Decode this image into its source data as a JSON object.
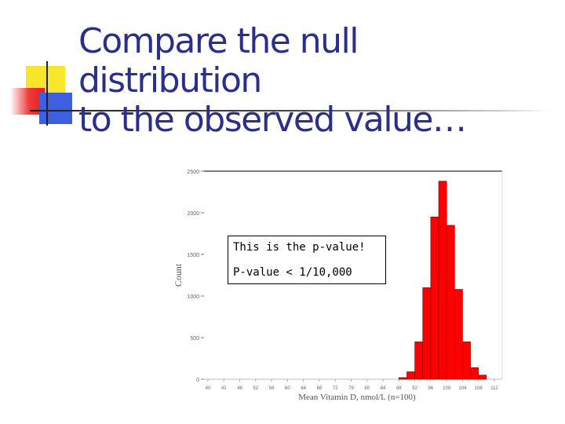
{
  "slide": {
    "title_line1": "Compare the null distribution",
    "title_line2": "to the observed value…"
  },
  "callout": {
    "line1": "This is the p-value!",
    "line2": "P-value < 1/10,000"
  },
  "colors": {
    "title": "#2a2f8a",
    "bar_fill": "#ff0000",
    "bar_stroke": "#800000"
  },
  "chart_data": {
    "type": "bar",
    "xlabel": "Mean Vitamin D, nmol/L (n=100)",
    "ylabel": "Count",
    "ylim": [
      0,
      2500
    ],
    "yticks": [
      0,
      500,
      1000,
      1500,
      2000,
      2500
    ],
    "ytick_labels": [
      "0",
      "500",
      "1000",
      "1500",
      "2000",
      "2500"
    ],
    "x": [
      40,
      41,
      48,
      52,
      56,
      60,
      64,
      68,
      72,
      76,
      80,
      84,
      88,
      92,
      96,
      100,
      104,
      108,
      112
    ],
    "xtick_labels": [
      "40",
      "41",
      "48",
      "52",
      "56",
      "60",
      "64",
      "68",
      "72",
      "76",
      "80",
      "84",
      "88",
      "92",
      "96",
      "100",
      "104",
      "108",
      "112"
    ],
    "bin_width": 2,
    "bars": [
      {
        "x": 89,
        "value": 20
      },
      {
        "x": 91,
        "value": 90
      },
      {
        "x": 93,
        "value": 450
      },
      {
        "x": 95,
        "value": 1100
      },
      {
        "x": 97,
        "value": 1950
      },
      {
        "x": 99,
        "value": 2380
      },
      {
        "x": 101,
        "value": 1850
      },
      {
        "x": 103,
        "value": 1080
      },
      {
        "x": 105,
        "value": 450
      },
      {
        "x": 107,
        "value": 140
      },
      {
        "x": 109,
        "value": 50
      }
    ]
  }
}
